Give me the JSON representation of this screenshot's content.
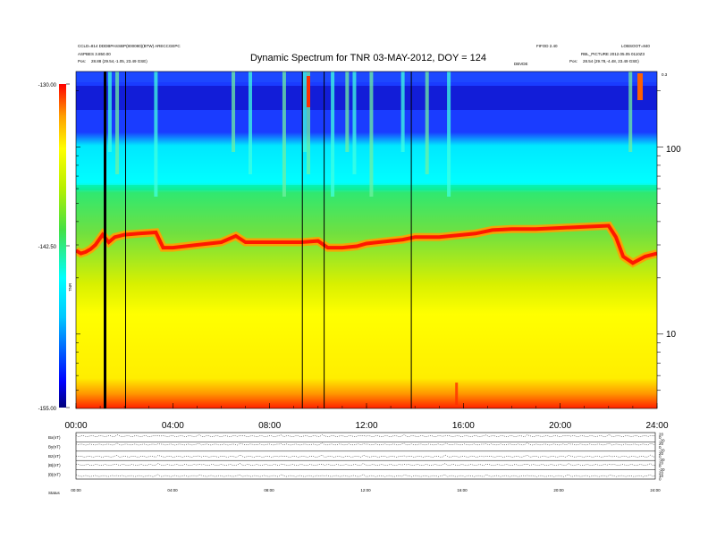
{
  "header": {
    "left_lines": [
      "CCLD=814 DDDBPASSBP(800080)(BTW) ARECCGEPC",
      "ASPBES 3.850.00",
      "Pos:"
    ],
    "left_pos_value": "28.88 (29.54,-1.05, 23.49 GSE)",
    "right_lines": [
      "FIFOD 2.40",
      "LOBSOOT=840",
      "RBL_PICTURE 2012.05.05 0110Z3"
    ],
    "right_pos_label": "Pos:",
    "right_pos_value": "28.54 (29.78,-4.48, 23.49 GSE)",
    "small_center": "DBVDE",
    "corner_right": "0.3"
  },
  "chart_data": {
    "type": "heatmap",
    "title": "Dynamic Spectrum for TNR 03-MAY-2012, DOY = 124",
    "x": {
      "ticks": [
        "00:00",
        "04:00",
        "08:00",
        "12:00",
        "16:00",
        "20:00",
        "24:00"
      ],
      "range_hours": [
        0,
        24
      ]
    },
    "y": {
      "scale": "log",
      "tick_labels": [
        "100",
        "10"
      ],
      "tick_values": [
        100,
        10
      ],
      "range": [
        4,
        254
      ],
      "unit_label": "kHz"
    },
    "colorbar": {
      "ticks": [
        "-130.00",
        "-142.50",
        "-155.00"
      ],
      "range": [
        -155,
        -130
      ],
      "label": "TNR",
      "colors": [
        "#00007a",
        "#0000ff",
        "#00d8ff",
        "#00ffff",
        "#44e044",
        "#b8f000",
        "#ffff00",
        "#ffa000",
        "#ff0000"
      ]
    },
    "plasma_line_khz": [
      [
        0.0,
        28
      ],
      [
        0.2,
        27
      ],
      [
        0.4,
        27.5
      ],
      [
        0.6,
        28.5
      ],
      [
        0.8,
        30
      ],
      [
        1.1,
        34
      ],
      [
        1.35,
        31
      ],
      [
        1.6,
        33
      ],
      [
        2.0,
        34
      ],
      [
        2.6,
        34.5
      ],
      [
        3.3,
        35
      ],
      [
        3.6,
        29
      ],
      [
        4.0,
        29
      ],
      [
        5.0,
        30
      ],
      [
        6.0,
        31
      ],
      [
        6.6,
        33.5
      ],
      [
        7.0,
        31
      ],
      [
        8.0,
        31
      ],
      [
        9.0,
        31
      ],
      [
        9.3,
        31
      ],
      [
        10.0,
        31.5
      ],
      [
        10.4,
        29
      ],
      [
        11.0,
        29
      ],
      [
        11.6,
        29.5
      ],
      [
        12.0,
        30.5
      ],
      [
        12.5,
        31
      ],
      [
        13.5,
        32
      ],
      [
        14.0,
        33
      ],
      [
        15.0,
        33
      ],
      [
        16.0,
        34
      ],
      [
        16.5,
        34.5
      ],
      [
        17.2,
        36
      ],
      [
        18.0,
        36.5
      ],
      [
        19.0,
        36.5
      ],
      [
        20.0,
        37
      ],
      [
        21.0,
        37.5
      ],
      [
        22.0,
        38
      ],
      [
        22.3,
        33
      ],
      [
        22.6,
        26
      ],
      [
        23.0,
        24
      ],
      [
        23.5,
        26
      ],
      [
        24.0,
        27
      ]
    ],
    "vertical_gaps_hours": [
      1.2,
      2.05,
      9.35,
      10.25,
      13.85
    ],
    "panels": [
      {
        "label": "Bx(nT)"
      },
      {
        "label": "By(nT)"
      },
      {
        "label": "Bz(nT)"
      },
      {
        "label": "|B|(nT)"
      },
      {
        "label": "|B|(nT)"
      }
    ],
    "panels_right_ticks": [
      "20",
      "0",
      "-20",
      "20",
      "0",
      "-20",
      "20",
      "0",
      "-20",
      "20",
      "0",
      "-20",
      "20",
      "10",
      "0"
    ],
    "panels_x_ticks": [
      "00:00",
      "04:00",
      "08:00",
      "12:00",
      "16:00",
      "20:00",
      "24:00"
    ],
    "panel_footer": "Status"
  }
}
